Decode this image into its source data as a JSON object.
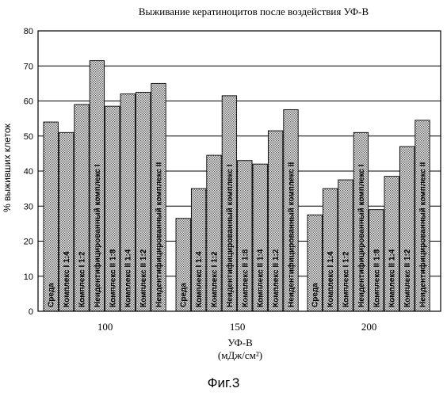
{
  "chart_data": {
    "type": "bar",
    "title": "Выживание кератиноцитов после воздействия УФ-В",
    "ylabel": "% выживших клеток",
    "xlabel": "УФ-В",
    "xunit": "(мДж/см²)",
    "ylim": [
      0,
      80
    ],
    "yticks": [
      0,
      10,
      20,
      30,
      40,
      50,
      60,
      70,
      80
    ],
    "grid": true,
    "legend": "none",
    "groups": [
      {
        "dose": "100",
        "bars": [
          {
            "label": "Среда",
            "value": 54
          },
          {
            "label": "Комплекс I 1:4",
            "value": 51
          },
          {
            "label": "Комплекс I 1:2",
            "value": 59
          },
          {
            "label": "Неидентифицированный комплекс I",
            "value": 71.5
          },
          {
            "label": "Комплекс II 1:8",
            "value": 58.5
          },
          {
            "label": "Комплекс II 1:4",
            "value": 62
          },
          {
            "label": "Комплекс II 1:2",
            "value": 62.5
          },
          {
            "label": "Неидентифицированный комплекс II",
            "value": 65
          }
        ]
      },
      {
        "dose": "150",
        "bars": [
          {
            "label": "Среда",
            "value": 26.5
          },
          {
            "label": "Комплекс I 1:4",
            "value": 35
          },
          {
            "label": "Комплекс I 1:2",
            "value": 44.5
          },
          {
            "label": "Неидентифицированный комплекс I",
            "value": 61.5
          },
          {
            "label": "Комплекс II 1:8",
            "value": 43
          },
          {
            "label": "Комплекс II 1:4",
            "value": 42
          },
          {
            "label": "Комплекс II 1:2",
            "value": 51.5
          },
          {
            "label": "Неидентифицированный комплекс II",
            "value": 57.5
          }
        ]
      },
      {
        "dose": "200",
        "bars": [
          {
            "label": "Среда",
            "value": 27.5
          },
          {
            "label": "Комплекс I 1:4",
            "value": 35
          },
          {
            "label": "Комплекс I 1:2",
            "value": 37.5
          },
          {
            "label": "Неидентифицированный комплекс I",
            "value": 51
          },
          {
            "label": "Комплекс II 1:8",
            "value": 29
          },
          {
            "label": "Комплекс II 1:4",
            "value": 38.5
          },
          {
            "label": "Комплекс II 1:2",
            "value": 47
          },
          {
            "label": "Неидентифицированный комплекс II",
            "value": 54.5
          }
        ]
      }
    ]
  },
  "caption": "Фиг.3",
  "colors": {
    "bar_fill": "#d8d8d8",
    "bar_stroke": "#000000",
    "grid": "#000000",
    "text": "#000000"
  }
}
